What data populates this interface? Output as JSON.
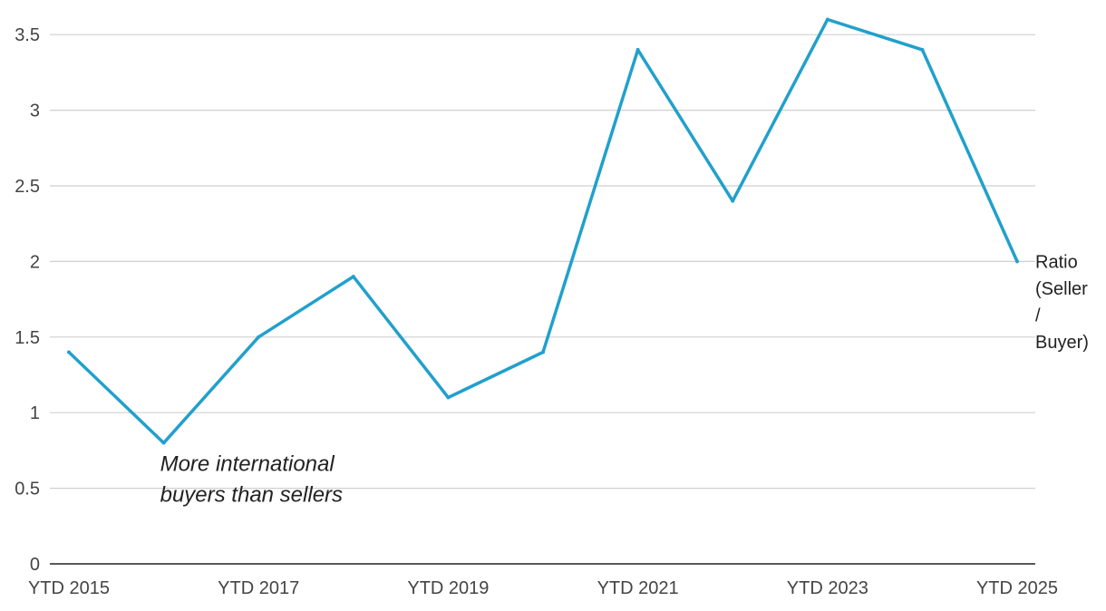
{
  "chart_data": {
    "type": "line",
    "x": [
      "YTD 2015",
      "YTD 2016",
      "YTD 2017",
      "YTD 2018",
      "YTD 2019",
      "YTD 2020",
      "YTD 2021",
      "YTD 2022",
      "YTD 2023",
      "YTD 2024",
      "YTD 2025"
    ],
    "x_tick_labels": [
      "YTD 2015",
      "YTD 2017",
      "YTD 2019",
      "YTD 2021",
      "YTD 2023",
      "YTD 2025"
    ],
    "series": [
      {
        "name": "Ratio (Seller / Buyer)",
        "name_lines": [
          "Ratio",
          "(Seller",
          "/",
          "Buyer)"
        ],
        "color": "#21a0cc",
        "values": [
          1.4,
          0.8,
          1.5,
          1.9,
          1.1,
          1.4,
          3.4,
          2.4,
          3.6,
          3.4,
          2.0
        ]
      }
    ],
    "y_ticks": [
      "0",
      "0.5",
      "1",
      "1.5",
      "2",
      "2.5",
      "3",
      "3.5"
    ],
    "ylim": [
      0,
      3.5
    ],
    "grid": true,
    "legend": "right, at end of line",
    "annotation": {
      "lines": [
        "More international",
        "buyers than sellers"
      ],
      "anchor_x": "YTD 2016",
      "anchor_y": 0.8
    },
    "title": "",
    "xlabel": "",
    "ylabel": ""
  }
}
